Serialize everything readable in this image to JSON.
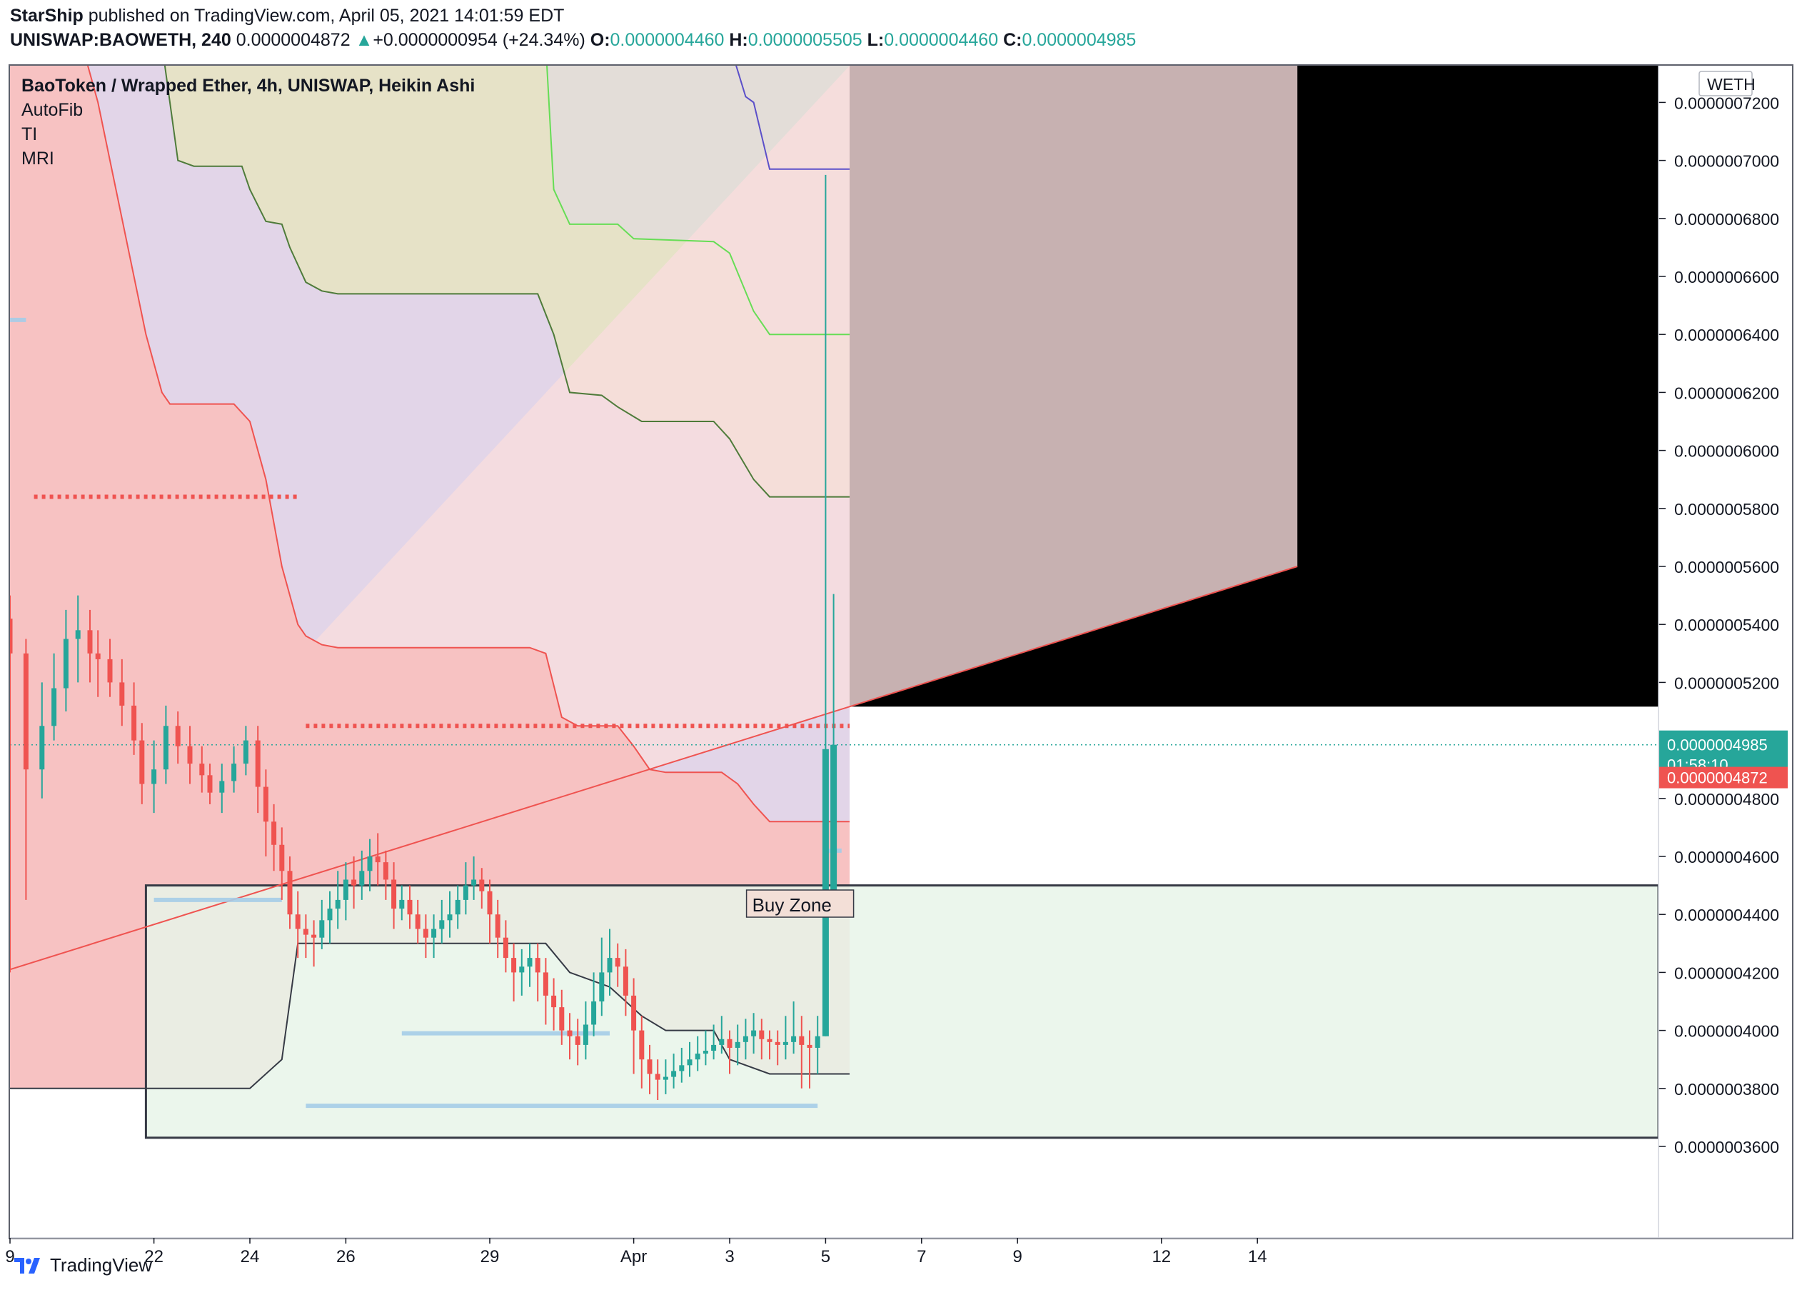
{
  "header": {
    "author": "StarShip",
    "published_text": "published on TradingView.com, April 05, 2021 14:01:59 EDT",
    "symbol": "UNISWAP:BAOWETH, 240",
    "last": "0.0000004872",
    "change": "+0.0000000954 (+24.34%)",
    "o_label": "O:",
    "o": "0.0000004460",
    "h_label": "H:",
    "h": "0.0000005505",
    "l_label": "L:",
    "l": "0.0000004460",
    "c_label": "C:",
    "c": "0.0000004985",
    "up_arrow": "▲"
  },
  "legend": {
    "title": "BaoToken / Wrapped Ether, 4h, UNISWAP, Heikin Ashi",
    "indicators": [
      "AutoFib",
      "TI",
      "MRI"
    ]
  },
  "footer": {
    "brand": "TradingView",
    "logo_icon": "tradingview-logo-icon"
  },
  "colors": {
    "up": "#26a69a",
    "down": "#ef5350",
    "red_zone": "#f7c2c2",
    "purple_zone": "#e2d5e8",
    "olive_zone": "#e6e2c7",
    "green_zone": "#e8f5e9",
    "accent": "#26a69a"
  },
  "chart_data": {
    "type": "candlestick",
    "style": "Heikin Ashi",
    "currency_label": "WETH",
    "y_ticks": [
      "0.0000007200",
      "0.0000007000",
      "0.0000006800",
      "0.0000006600",
      "0.0000006400",
      "0.0000006200",
      "0.0000006000",
      "0.0000005800",
      "0.0000005600",
      "0.0000005400",
      "0.0000005200",
      "0.0000004800",
      "0.0000004600",
      "0.0000004400",
      "0.0000004200",
      "0.0000004000",
      "0.0000003800",
      "0.0000003600"
    ],
    "y_tick_values": [
      7.2,
      7.0,
      6.8,
      6.6,
      6.4,
      6.2,
      6.0,
      5.8,
      5.6,
      5.4,
      5.2,
      4.8,
      4.6,
      4.4,
      4.2,
      4.0,
      3.8,
      3.6
    ],
    "ylim": [
      3.39,
      7.33
    ],
    "y_unit_note": "×1e-7",
    "x_ticks": [
      "9",
      "22",
      "24",
      "26",
      "29",
      "Apr",
      "3",
      "5",
      "7",
      "9",
      "12",
      "14"
    ],
    "x_tick_idx": [
      0,
      36,
      60,
      84,
      120,
      156,
      180,
      204,
      228,
      252,
      288,
      312
    ],
    "xlim": [
      0,
      322
    ],
    "last_price_label": "0.0000004985",
    "countdown": "01:58:10",
    "close_price_label": "0.0000004872",
    "last_price_value": 4.985,
    "close_price_value": 4.872,
    "buy_zone": {
      "label": "Buy Zone",
      "top": 4.5,
      "bottom": 3.63,
      "x_start": 34
    },
    "dotted_levels": [
      {
        "value": 5.84,
        "from": 6,
        "to": 72
      },
      {
        "value": 5.05,
        "from": 74,
        "to": 210
      }
    ],
    "supports": [
      {
        "value": 4.45,
        "from": 36,
        "to": 68
      },
      {
        "value": 3.99,
        "from": 98,
        "to": 150
      },
      {
        "value": 3.74,
        "from": 74,
        "to": 202
      },
      {
        "value": 4.62,
        "from": 204,
        "to": 208
      },
      {
        "value": 6.45,
        "from": 0,
        "to": 4
      }
    ],
    "trendline": {
      "from": [
        0,
        4.21
      ],
      "to": [
        322,
        5.6
      ]
    },
    "bands": [
      {
        "name": "red_lower",
        "values": [
          [
            0,
            3.8
          ],
          [
            36,
            3.8
          ],
          [
            60,
            3.8
          ],
          [
            68,
            3.9
          ],
          [
            72,
            4.3
          ],
          [
            78,
            4.3
          ],
          [
            100,
            4.3
          ],
          [
            134,
            4.3
          ],
          [
            140,
            4.2
          ],
          [
            150,
            4.15
          ],
          [
            158,
            4.05
          ],
          [
            164,
            4.0
          ],
          [
            176,
            4.0
          ],
          [
            180,
            3.9
          ],
          [
            190,
            3.85
          ],
          [
            210,
            3.85
          ]
        ]
      },
      {
        "name": "red_upper",
        "values": [
          [
            0,
            7.4
          ],
          [
            18,
            7.4
          ],
          [
            22,
            7.2
          ],
          [
            28,
            6.8
          ],
          [
            34,
            6.4
          ],
          [
            38,
            6.2
          ],
          [
            40,
            6.16
          ],
          [
            56,
            6.16
          ],
          [
            60,
            6.1
          ],
          [
            64,
            5.9
          ],
          [
            68,
            5.6
          ],
          [
            72,
            5.4
          ],
          [
            74,
            5.36
          ],
          [
            78,
            5.33
          ],
          [
            82,
            5.32
          ],
          [
            130,
            5.32
          ],
          [
            134,
            5.3
          ],
          [
            138,
            5.08
          ],
          [
            142,
            5.05
          ],
          [
            152,
            5.05
          ],
          [
            156,
            4.98
          ],
          [
            160,
            4.9
          ],
          [
            164,
            4.89
          ],
          [
            178,
            4.89
          ],
          [
            182,
            4.85
          ],
          [
            186,
            4.78
          ],
          [
            190,
            4.72
          ],
          [
            210,
            4.72
          ]
        ]
      },
      {
        "name": "purple_upper",
        "values": [
          [
            0,
            7.4
          ],
          [
            38,
            7.4
          ],
          [
            42,
            7.0
          ],
          [
            46,
            6.98
          ],
          [
            58,
            6.98
          ],
          [
            60,
            6.9
          ],
          [
            64,
            6.79
          ],
          [
            68,
            6.78
          ],
          [
            70,
            6.7
          ],
          [
            74,
            6.58
          ],
          [
            78,
            6.55
          ],
          [
            82,
            6.54
          ],
          [
            132,
            6.54
          ],
          [
            136,
            6.4
          ],
          [
            140,
            6.2
          ],
          [
            148,
            6.19
          ],
          [
            152,
            6.15
          ],
          [
            158,
            6.1
          ],
          [
            176,
            6.1
          ],
          [
            180,
            6.04
          ],
          [
            186,
            5.9
          ],
          [
            190,
            5.84
          ],
          [
            210,
            5.84
          ]
        ]
      },
      {
        "name": "olive_upper",
        "values": [
          [
            0,
            7.4
          ],
          [
            134,
            7.4
          ],
          [
            136,
            6.9
          ],
          [
            140,
            6.78
          ],
          [
            152,
            6.78
          ],
          [
            156,
            6.73
          ],
          [
            176,
            6.72
          ],
          [
            180,
            6.68
          ],
          [
            186,
            6.48
          ],
          [
            190,
            6.4
          ],
          [
            210,
            6.4
          ]
        ]
      },
      {
        "name": "purple_lower_line",
        "values": [
          [
            180,
            7.4
          ],
          [
            184,
            7.22
          ],
          [
            186,
            7.2
          ],
          [
            190,
            6.97
          ],
          [
            210,
            6.97
          ]
        ]
      }
    ],
    "candles": [
      [
        0,
        5.42,
        5.3,
        5.5,
        4.2
      ],
      [
        4,
        5.3,
        4.9,
        5.35,
        4.45
      ],
      [
        8,
        4.9,
        5.05,
        5.2,
        4.8
      ],
      [
        11,
        5.05,
        5.18,
        5.3,
        5.0
      ],
      [
        14,
        5.18,
        5.35,
        5.45,
        5.1
      ],
      [
        17,
        5.35,
        5.38,
        5.5,
        5.2
      ],
      [
        20,
        5.38,
        5.3,
        5.45,
        5.2
      ],
      [
        22,
        5.3,
        5.28,
        5.38,
        5.15
      ],
      [
        25,
        5.28,
        5.2,
        5.35,
        5.15
      ],
      [
        28,
        5.2,
        5.12,
        5.28,
        5.05
      ],
      [
        31,
        5.12,
        5.0,
        5.2,
        4.95
      ],
      [
        33,
        5.0,
        4.85,
        5.06,
        4.78
      ],
      [
        36,
        4.85,
        4.9,
        5.0,
        4.75
      ],
      [
        39,
        4.9,
        5.05,
        5.12,
        4.85
      ],
      [
        42,
        5.05,
        4.98,
        5.1,
        4.92
      ],
      [
        45,
        4.98,
        4.92,
        5.05,
        4.85
      ],
      [
        48,
        4.92,
        4.88,
        4.98,
        4.82
      ],
      [
        50,
        4.88,
        4.82,
        4.92,
        4.78
      ],
      [
        53,
        4.82,
        4.86,
        4.92,
        4.75
      ],
      [
        56,
        4.86,
        4.92,
        4.98,
        4.82
      ],
      [
        59,
        4.92,
        5.0,
        5.05,
        4.88
      ],
      [
        62,
        5.0,
        4.84,
        5.05,
        4.75
      ],
      [
        64,
        4.84,
        4.72,
        4.9,
        4.6
      ],
      [
        66,
        4.72,
        4.64,
        4.78,
        4.55
      ],
      [
        68,
        4.64,
        4.55,
        4.7,
        4.45
      ],
      [
        70,
        4.55,
        4.4,
        4.6,
        4.35
      ],
      [
        72,
        4.4,
        4.35,
        4.48,
        4.25
      ],
      [
        74,
        4.35,
        4.33,
        4.4,
        4.25
      ],
      [
        76,
        4.33,
        4.32,
        4.38,
        4.22
      ],
      [
        78,
        4.32,
        4.38,
        4.45,
        4.28
      ],
      [
        80,
        4.38,
        4.42,
        4.48,
        4.3
      ],
      [
        82,
        4.42,
        4.45,
        4.55,
        4.35
      ],
      [
        84,
        4.45,
        4.52,
        4.58,
        4.38
      ],
      [
        86,
        4.52,
        4.5,
        4.6,
        4.42
      ],
      [
        88,
        4.5,
        4.55,
        4.62,
        4.45
      ],
      [
        90,
        4.55,
        4.6,
        4.66,
        4.48
      ],
      [
        92,
        4.6,
        4.58,
        4.68,
        4.5
      ],
      [
        94,
        4.58,
        4.52,
        4.62,
        4.45
      ],
      [
        96,
        4.52,
        4.42,
        4.58,
        4.35
      ],
      [
        98,
        4.42,
        4.45,
        4.5,
        4.38
      ],
      [
        100,
        4.45,
        4.4,
        4.5,
        4.35
      ],
      [
        102,
        4.4,
        4.35,
        4.45,
        4.3
      ],
      [
        104,
        4.35,
        4.32,
        4.4,
        4.25
      ],
      [
        106,
        4.32,
        4.35,
        4.4,
        4.25
      ],
      [
        108,
        4.35,
        4.38,
        4.45,
        4.3
      ],
      [
        110,
        4.38,
        4.4,
        4.48,
        4.32
      ],
      [
        112,
        4.4,
        4.45,
        4.5,
        4.35
      ],
      [
        114,
        4.45,
        4.5,
        4.58,
        4.4
      ],
      [
        116,
        4.5,
        4.52,
        4.6,
        4.45
      ],
      [
        118,
        4.52,
        4.48,
        4.56,
        4.42
      ],
      [
        120,
        4.48,
        4.4,
        4.52,
        4.3
      ],
      [
        122,
        4.4,
        4.32,
        4.45,
        4.25
      ],
      [
        124,
        4.32,
        4.25,
        4.38,
        4.2
      ],
      [
        126,
        4.25,
        4.2,
        4.3,
        4.1
      ],
      [
        128,
        4.2,
        4.22,
        4.28,
        4.12
      ],
      [
        130,
        4.22,
        4.25,
        4.3,
        4.15
      ],
      [
        132,
        4.25,
        4.2,
        4.3,
        4.1
      ],
      [
        134,
        4.2,
        4.12,
        4.25,
        4.02
      ],
      [
        136,
        4.12,
        4.08,
        4.18,
        4.0
      ],
      [
        138,
        4.08,
        4.0,
        4.14,
        3.95
      ],
      [
        140,
        4.0,
        3.98,
        4.06,
        3.9
      ],
      [
        142,
        3.98,
        3.95,
        4.04,
        3.88
      ],
      [
        144,
        3.95,
        4.02,
        4.1,
        3.9
      ],
      [
        146,
        4.02,
        4.1,
        4.2,
        3.98
      ],
      [
        148,
        4.1,
        4.2,
        4.32,
        4.05
      ],
      [
        150,
        4.2,
        4.25,
        4.35,
        4.12
      ],
      [
        152,
        4.25,
        4.22,
        4.3,
        4.15
      ],
      [
        154,
        4.22,
        4.12,
        4.28,
        4.05
      ],
      [
        156,
        4.12,
        4.0,
        4.18,
        3.85
      ],
      [
        158,
        4.0,
        3.9,
        4.05,
        3.8
      ],
      [
        160,
        3.9,
        3.85,
        3.95,
        3.78
      ],
      [
        162,
        3.85,
        3.83,
        3.9,
        3.76
      ],
      [
        164,
        3.83,
        3.84,
        3.9,
        3.78
      ],
      [
        166,
        3.84,
        3.86,
        3.92,
        3.8
      ],
      [
        168,
        3.86,
        3.88,
        3.94,
        3.82
      ],
      [
        170,
        3.88,
        3.9,
        3.96,
        3.84
      ],
      [
        172,
        3.9,
        3.92,
        3.98,
        3.86
      ],
      [
        174,
        3.92,
        3.93,
        4.0,
        3.88
      ],
      [
        176,
        3.93,
        3.95,
        4.02,
        3.9
      ],
      [
        178,
        3.95,
        3.97,
        4.05,
        3.92
      ],
      [
        180,
        3.97,
        3.94,
        4.0,
        3.85
      ],
      [
        182,
        3.94,
        3.96,
        4.02,
        3.88
      ],
      [
        184,
        3.96,
        3.98,
        4.04,
        3.9
      ],
      [
        186,
        3.98,
        4.0,
        4.06,
        3.92
      ],
      [
        188,
        4.0,
        3.97,
        4.04,
        3.9
      ],
      [
        190,
        3.97,
        3.96,
        4.0,
        3.9
      ],
      [
        192,
        3.96,
        3.95,
        4.0,
        3.88
      ],
      [
        194,
        3.95,
        3.96,
        4.05,
        3.9
      ],
      [
        196,
        3.96,
        3.98,
        4.1,
        3.92
      ],
      [
        198,
        3.98,
        3.95,
        4.05,
        3.8
      ],
      [
        200,
        3.95,
        3.94,
        4.0,
        3.8
      ],
      [
        202,
        3.94,
        3.98,
        4.05,
        3.85
      ],
      [
        204,
        3.98,
        4.97,
        6.95,
        3.98
      ],
      [
        206,
        4.46,
        4.985,
        5.505,
        4.46
      ]
    ]
  }
}
